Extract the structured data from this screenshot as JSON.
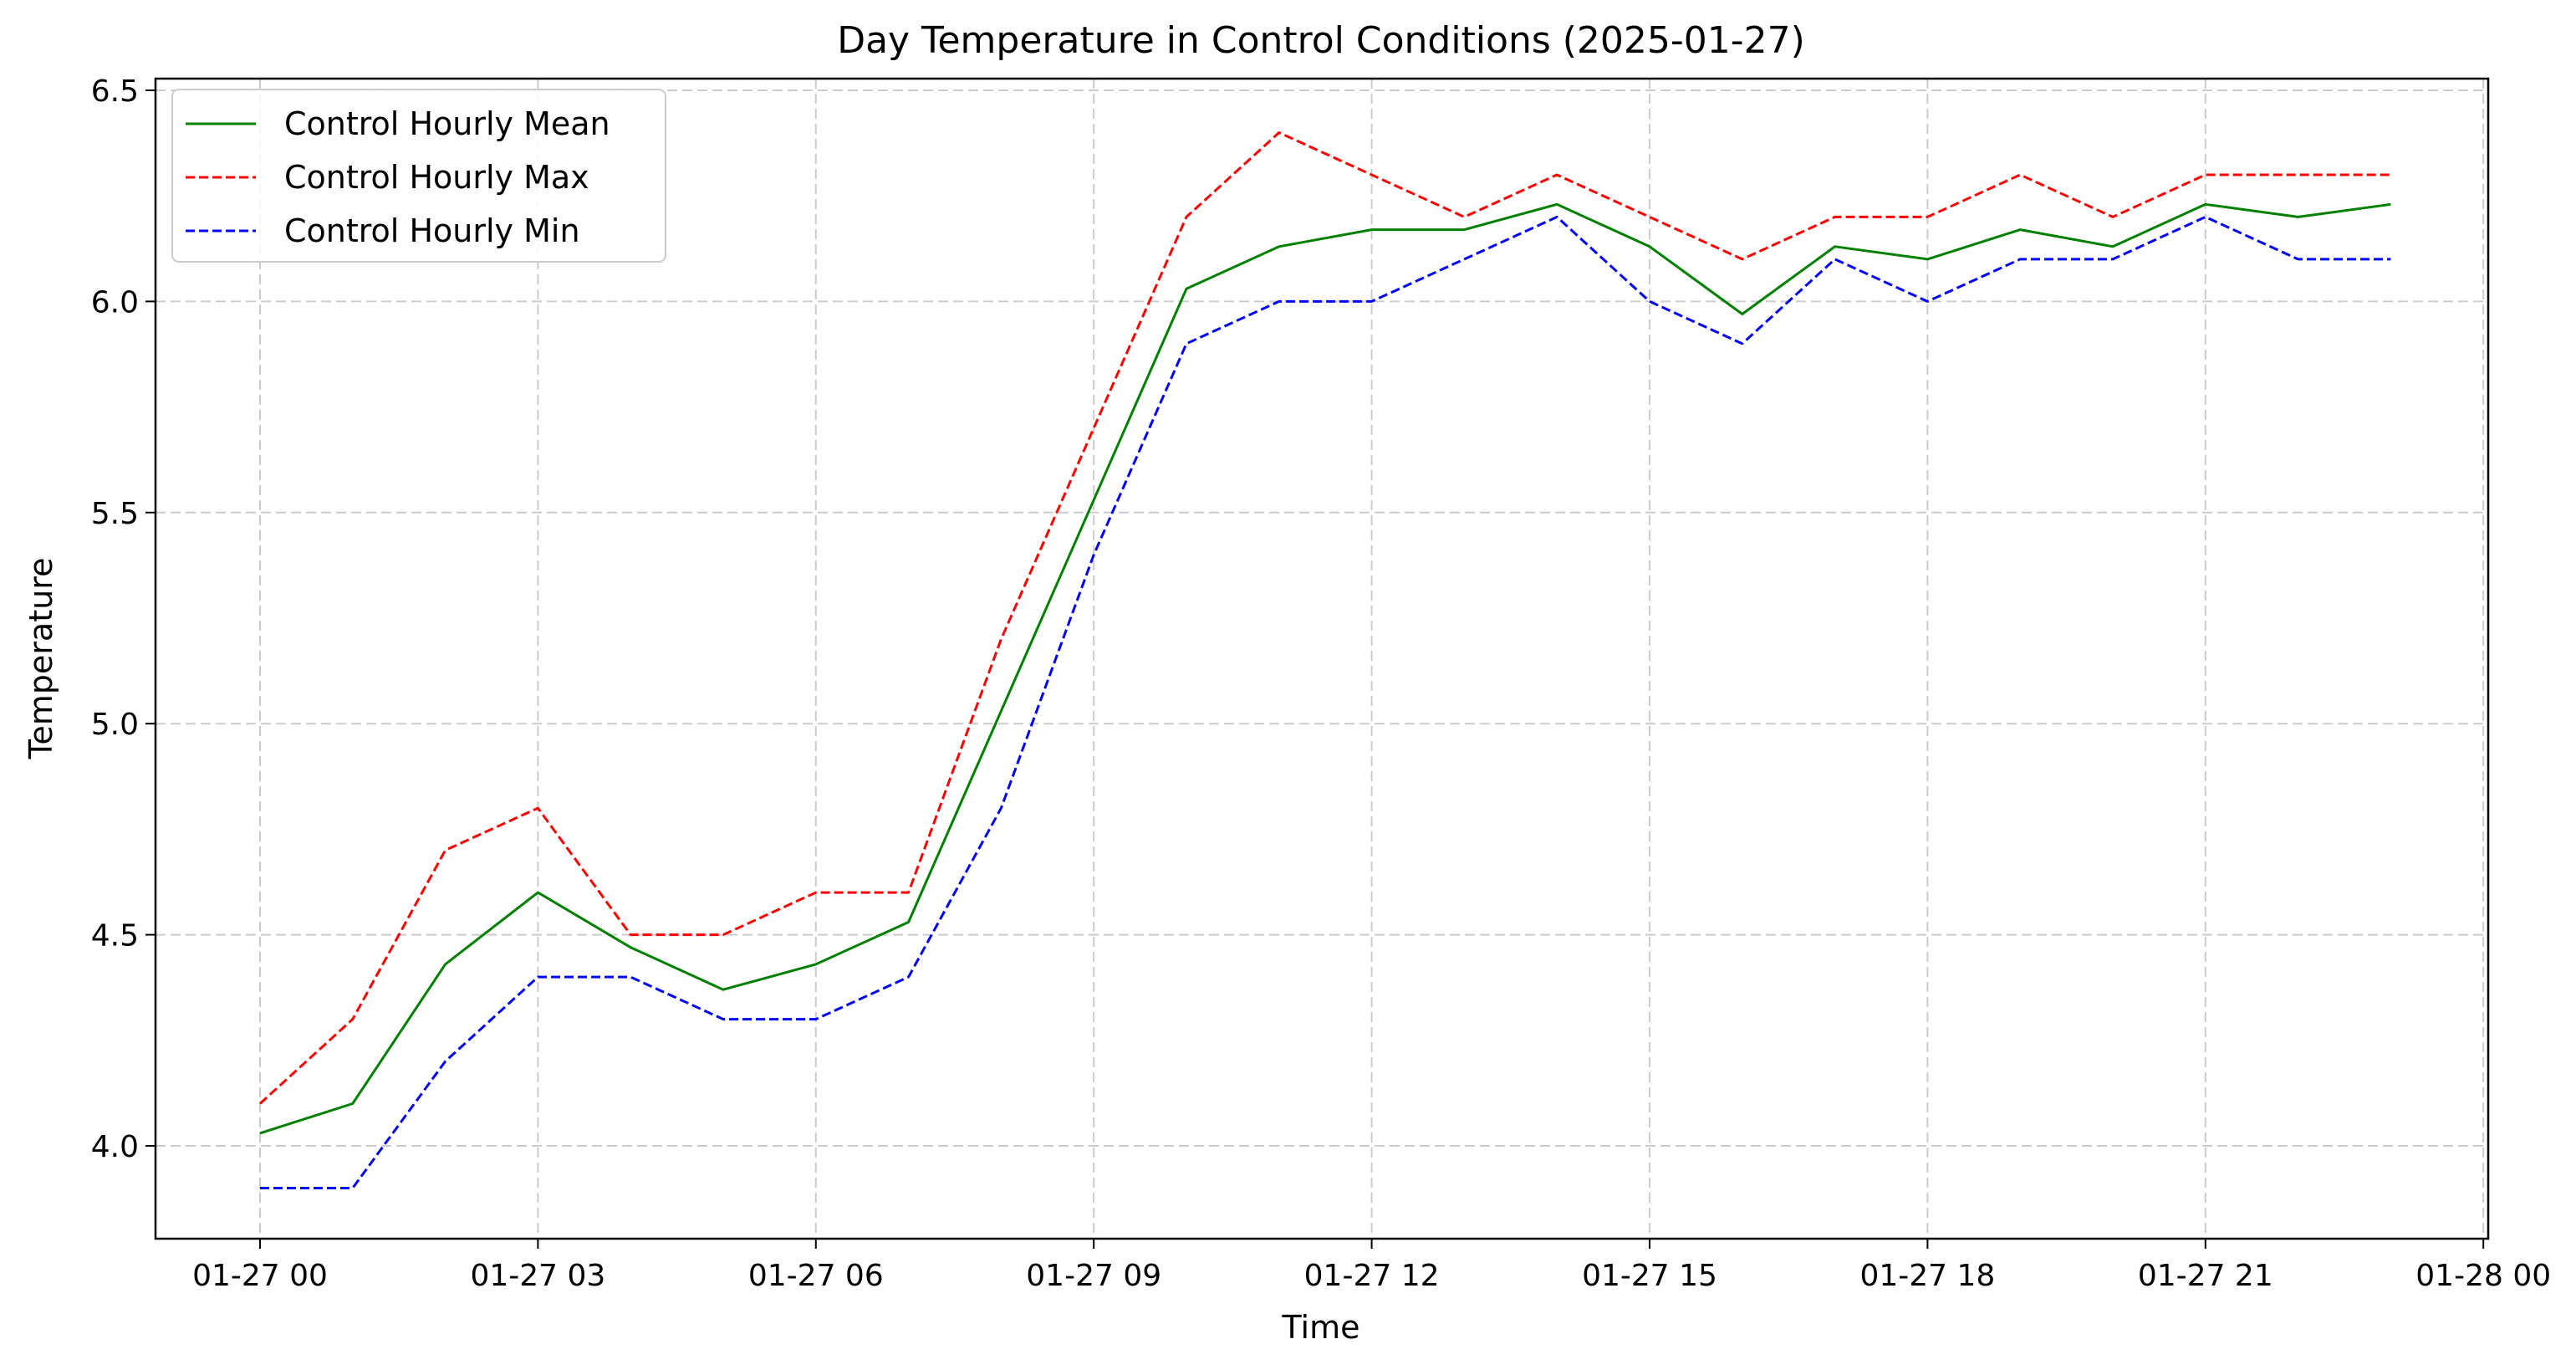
{
  "chart_data": {
    "type": "line",
    "title": "Day Temperature in Control Conditions (2025-01-27)",
    "xlabel": "Time",
    "ylabel": "Temperature",
    "x": [
      "01-27 00",
      "01-27 01",
      "01-27 02",
      "01-27 03",
      "01-27 04",
      "01-27 05",
      "01-27 06",
      "01-27 07",
      "01-27 08",
      "01-27 09",
      "01-27 10",
      "01-27 11",
      "01-27 12",
      "01-27 13",
      "01-27 14",
      "01-27 15",
      "01-27 16",
      "01-27 17",
      "01-27 18",
      "01-27 19",
      "01-27 20",
      "01-27 21",
      "01-27 22",
      "01-27 23"
    ],
    "x_ticks": [
      "01-27 00",
      "01-27 03",
      "01-27 06",
      "01-27 09",
      "01-27 12",
      "01-27 15",
      "01-27 18",
      "01-27 21",
      "01-28 00"
    ],
    "y_ticks": [
      "4.0",
      "4.5",
      "5.0",
      "5.5",
      "6.0",
      "6.5"
    ],
    "ylim": [
      3.78,
      6.52
    ],
    "grid": true,
    "legend_position": "top-left",
    "series": [
      {
        "name": "Control Hourly Mean",
        "color": "#008000",
        "style": "solid",
        "values": [
          4.03,
          4.1,
          4.43,
          4.6,
          4.47,
          4.37,
          4.43,
          4.53,
          5.03,
          5.53,
          6.03,
          6.13,
          6.17,
          6.17,
          6.23,
          6.13,
          5.97,
          6.13,
          6.1,
          6.17,
          6.13,
          6.23,
          6.2,
          6.23
        ]
      },
      {
        "name": "Control Hourly Max",
        "color": "#ff0000",
        "style": "dashed",
        "values": [
          4.1,
          4.3,
          4.7,
          4.8,
          4.5,
          4.5,
          4.6,
          4.6,
          5.2,
          5.7,
          6.2,
          6.4,
          6.3,
          6.2,
          6.3,
          6.2,
          6.1,
          6.2,
          6.2,
          6.3,
          6.2,
          6.3,
          6.3,
          6.3
        ]
      },
      {
        "name": "Control Hourly Min",
        "color": "#0000ff",
        "style": "dashed",
        "values": [
          3.9,
          3.9,
          4.2,
          4.4,
          4.4,
          4.3,
          4.3,
          4.4,
          4.8,
          5.4,
          5.9,
          6.0,
          6.0,
          6.1,
          6.2,
          6.0,
          5.9,
          6.1,
          6.0,
          6.1,
          6.1,
          6.2,
          6.1,
          6.1
        ]
      }
    ]
  }
}
